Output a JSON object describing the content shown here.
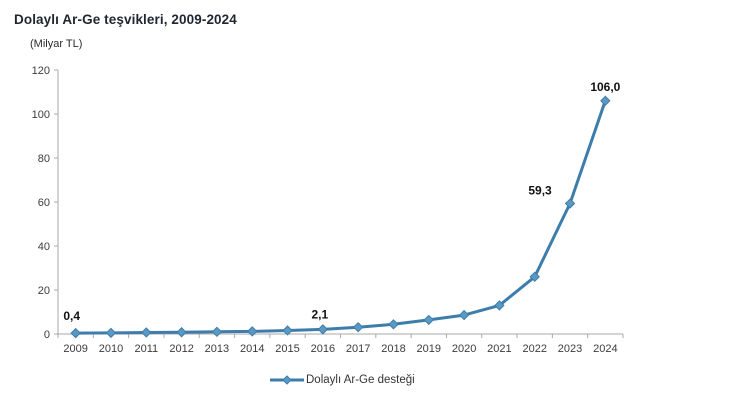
{
  "header": {
    "title": "Dolaylı Ar-Ge teşvikleri, 2009-2024",
    "unit_label": "(Milyar TL)"
  },
  "chart_data": {
    "type": "line",
    "title": "Dolaylı Ar-Ge teşvikleri, 2009-2024",
    "unit_label": "(Milyar TL)",
    "xlabel": "",
    "ylabel": "Milyar TL",
    "categories": [
      "2009",
      "2010",
      "2011",
      "2012",
      "2013",
      "2014",
      "2015",
      "2016",
      "2017",
      "2018",
      "2019",
      "2020",
      "2021",
      "2022",
      "2023",
      "2024"
    ],
    "series": [
      {
        "name": "Dolaylı Ar-Ge desteği",
        "values": [
          0.4,
          0.5,
          0.7,
          0.8,
          1.0,
          1.2,
          1.6,
          2.1,
          3.1,
          4.4,
          6.4,
          8.6,
          13.0,
          26.0,
          59.3,
          106.0
        ],
        "point_labels": [
          "0,4",
          null,
          null,
          null,
          null,
          null,
          null,
          "2,1",
          null,
          null,
          null,
          null,
          null,
          null,
          "59,3",
          "106,0"
        ]
      }
    ],
    "ylim": [
      0,
      120
    ],
    "yticks": [
      0,
      20,
      40,
      60,
      80,
      100,
      120
    ],
    "grid": false,
    "legend_position": "bottom",
    "colors": {
      "line": "#3d7dab",
      "marker_fill": "#5b99c2",
      "axis": "#a8a8a8",
      "tick_text": "#3c3c3c",
      "data_label": "#111111",
      "title_text": "#1f2630"
    }
  },
  "legend": {
    "items": [
      {
        "label": "Dolaylı Ar-Ge desteği"
      }
    ]
  }
}
